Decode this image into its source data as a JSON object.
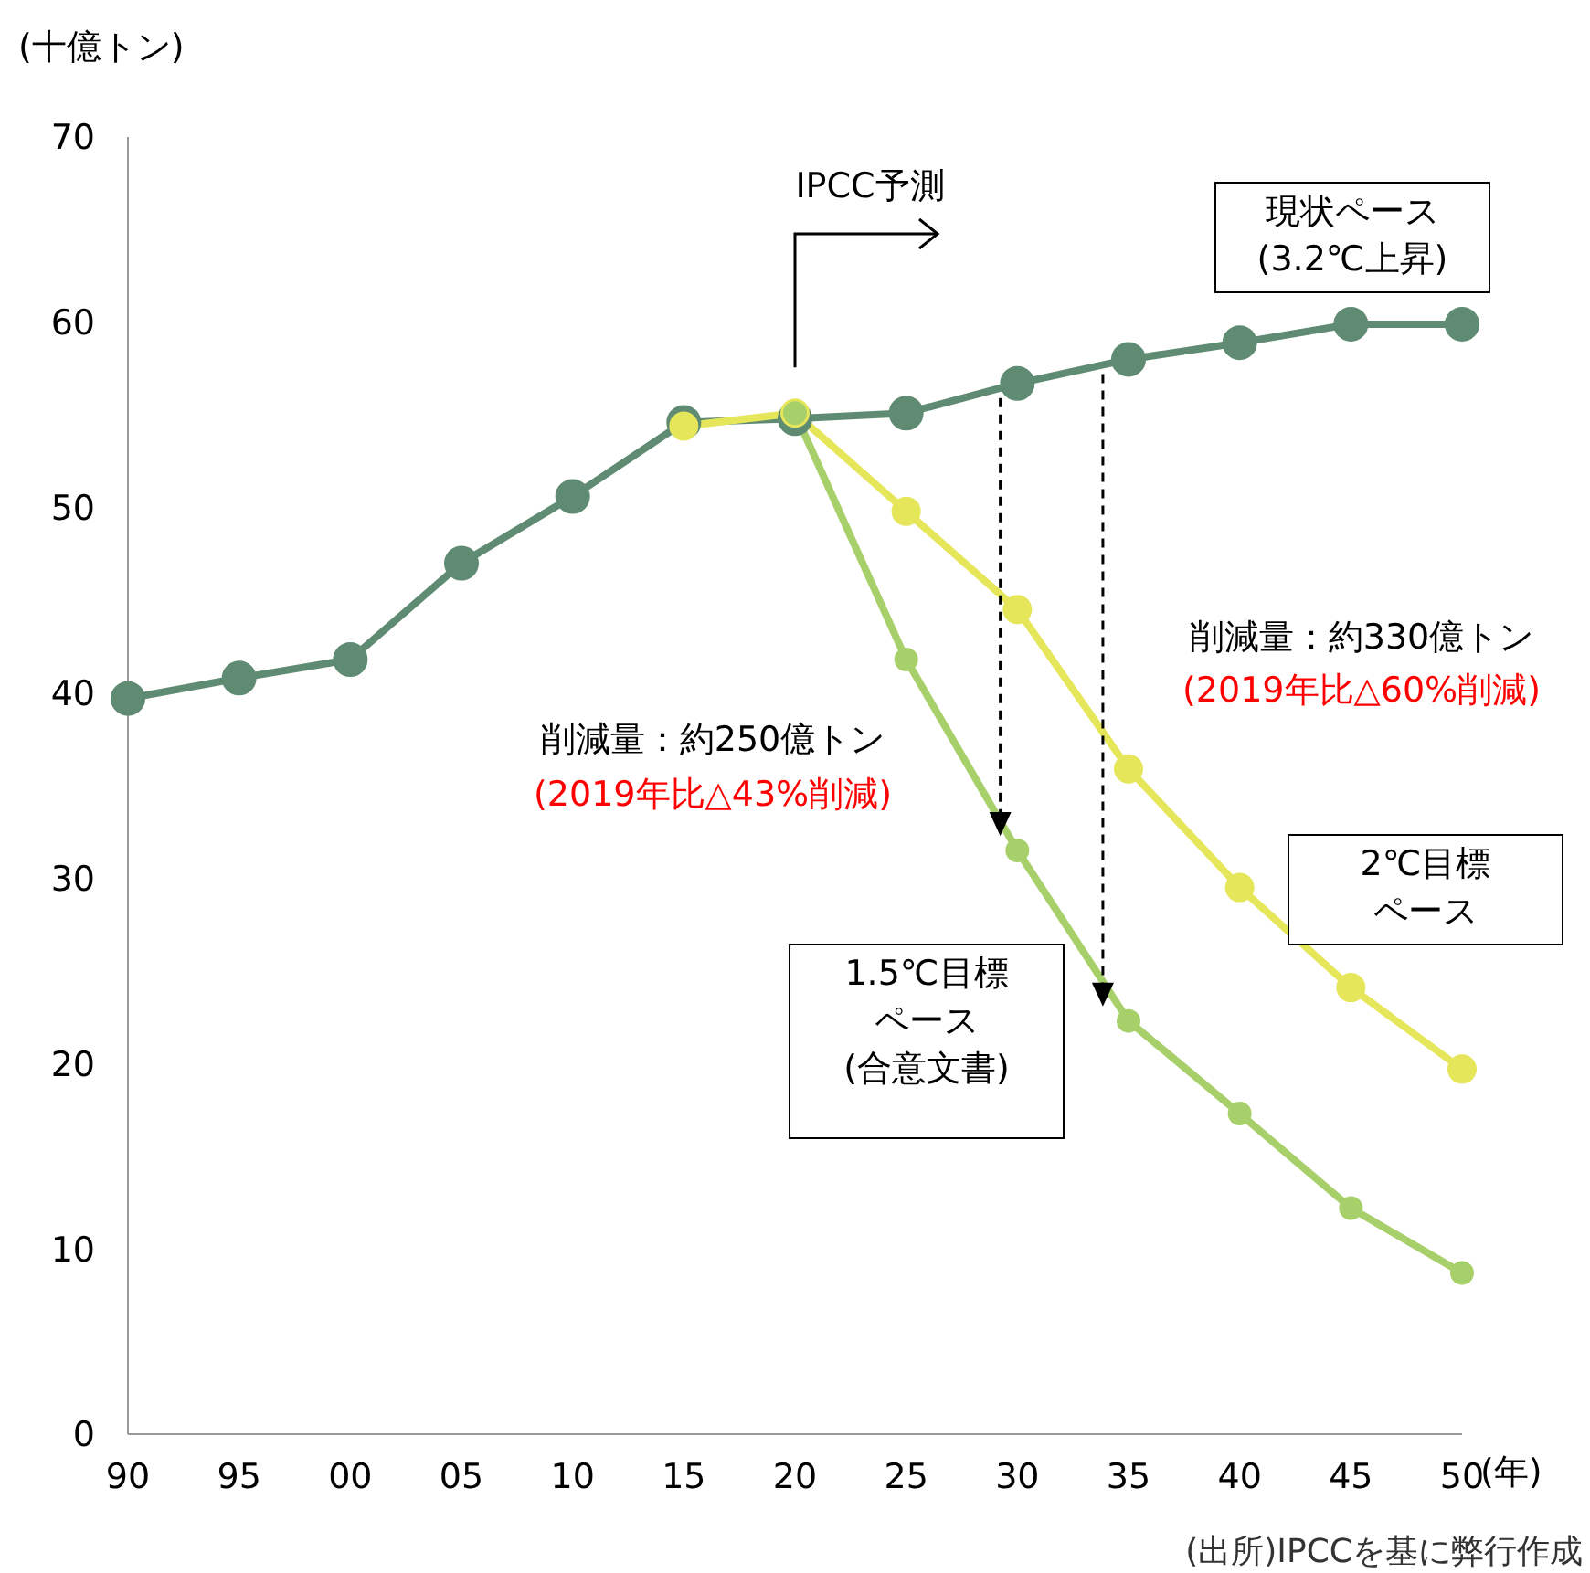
{
  "chart_data": {
    "type": "line",
    "ylabel": "(十億トン)",
    "xlabel": "(年)",
    "categories": [
      "90",
      "95",
      "00",
      "05",
      "10",
      "15",
      "20",
      "25",
      "30",
      "35",
      "40",
      "45",
      "50"
    ],
    "series": [
      {
        "name": "現状ペース(3.2℃上昇)",
        "color": "#5f8b73",
        "values": [
          39.7,
          40.8,
          41.8,
          47.0,
          50.6,
          54.6,
          54.8,
          55.1,
          56.7,
          58.0,
          58.9,
          59.9,
          59.9
        ]
      },
      {
        "name": "2℃目標ペース",
        "color": "#e6e65a",
        "values": [
          null,
          null,
          null,
          null,
          null,
          54.4,
          55.1,
          49.8,
          44.5,
          35.9,
          29.5,
          24.1,
          19.7
        ]
      },
      {
        "name": "1.5℃目標ペース(合意文書)",
        "color": "#a8d06a",
        "values": [
          null,
          null,
          null,
          null,
          null,
          null,
          55.1,
          41.8,
          31.5,
          22.3,
          17.3,
          12.2,
          8.7
        ]
      }
    ],
    "ylim": [
      0,
      70
    ],
    "yticks": [
      0,
      10,
      20,
      30,
      40,
      50,
      60,
      70
    ],
    "grid": false,
    "legend": false,
    "marker": "circle",
    "line_style": "solid",
    "annotations": [
      "IPCC予測",
      "削減量：約250億トン",
      "(2019年比△43%削減)",
      "削減量：約330億トン",
      "(2019年比△60%削減)",
      "(出所)IPCCを基に弊行作成"
    ]
  }
}
